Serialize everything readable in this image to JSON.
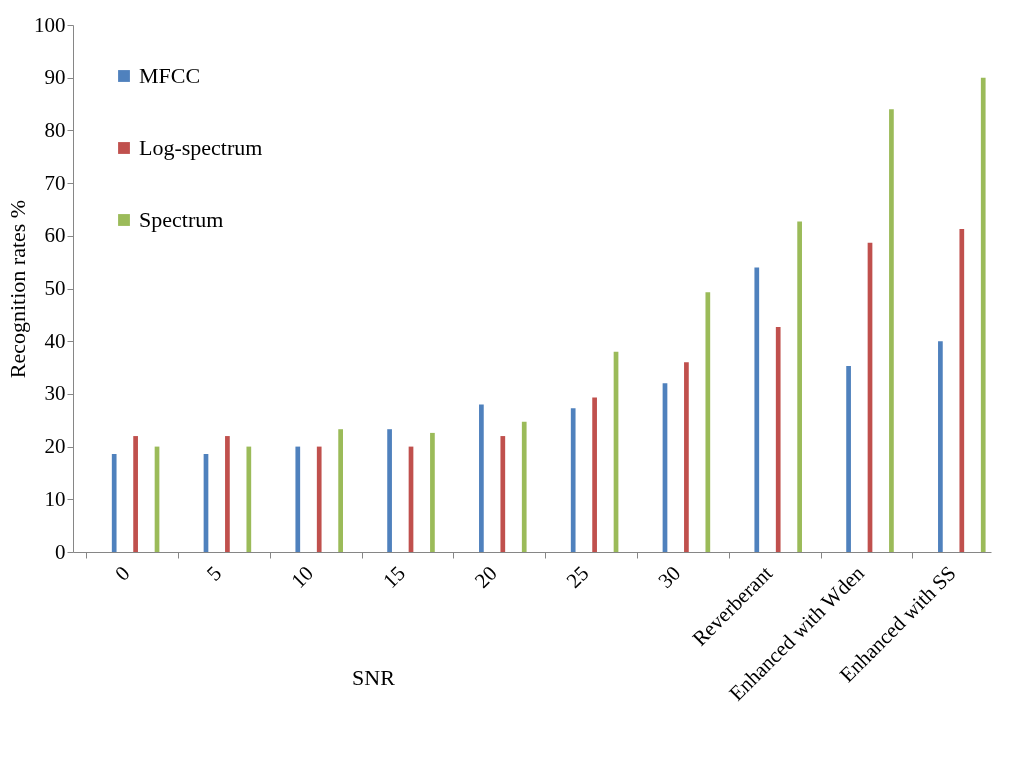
{
  "chart_data": {
    "type": "bar",
    "xlabel": "SNR",
    "ylabel": "Recognition rates %",
    "categories": [
      "0",
      "5",
      "10",
      "15",
      "20",
      "25",
      "30",
      "Reverberant",
      "Enhanced with Wden",
      "Enhanced with SS"
    ],
    "series": [
      {
        "name": "MFCC",
        "color": "#4f81bd",
        "values": [
          18.6,
          18.6,
          20,
          23.3,
          28,
          27.3,
          32,
          54,
          35.3,
          40
        ]
      },
      {
        "name": "Log-spectrum",
        "color": "#c0504d",
        "values": [
          22,
          22,
          20,
          20,
          22,
          29.3,
          36,
          42.7,
          58.7,
          61.3
        ]
      },
      {
        "name": "Spectrum",
        "color": "#9bbb59",
        "values": [
          20,
          20,
          23.3,
          22.6,
          24.7,
          38,
          49.3,
          62.7,
          84,
          90
        ]
      }
    ],
    "ylim": [
      0,
      100
    ],
    "yticks": [
      0,
      10,
      20,
      30,
      40,
      50,
      60,
      70,
      80,
      90,
      100
    ],
    "grid": false,
    "legend": "top left"
  }
}
